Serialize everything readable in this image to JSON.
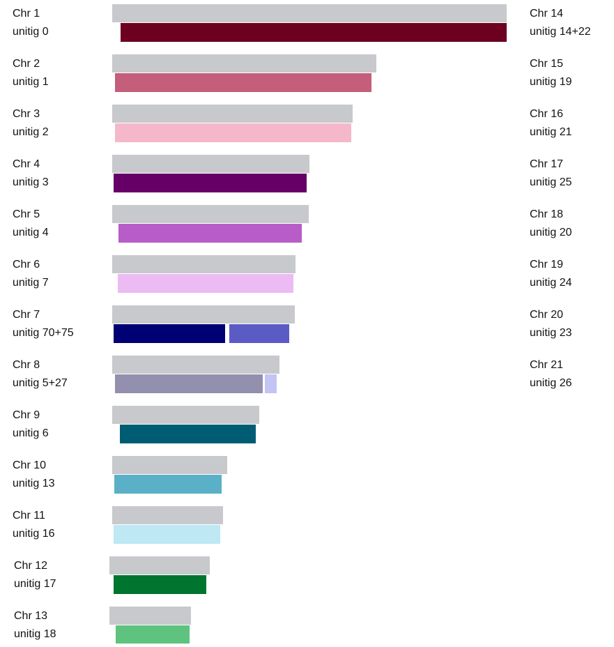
{
  "left": [
    {
      "chr": "Chr 1",
      "unitig": "unitig 0"
    },
    {
      "chr": "Chr 2",
      "unitig": "unitig 1"
    },
    {
      "chr": "Chr 3",
      "unitig": "unitig 2"
    },
    {
      "chr": "Chr 4",
      "unitig": "unitig 3"
    },
    {
      "chr": "Chr 5",
      "unitig": "unitig 4"
    },
    {
      "chr": "Chr 6",
      "unitig": "unitig 7"
    },
    {
      "chr": "Chr 7",
      "unitig": "unitig 70+75"
    },
    {
      "chr": "Chr 8",
      "unitig": "unitig 5+27"
    },
    {
      "chr": "Chr 9",
      "unitig": "unitig 6"
    },
    {
      "chr": "Chr 10",
      "unitig": "unitig 13"
    },
    {
      "chr": "Chr 11",
      "unitig": "unitig 16"
    },
    {
      "chr": "Chr 12",
      "unitig": "unitig 17"
    },
    {
      "chr": "Chr 13",
      "unitig": "unitig 18"
    }
  ],
  "right": [
    {
      "chr": "Chr 14",
      "unitig": "unitig 14+22"
    },
    {
      "chr": "Chr 15",
      "unitig": "unitig 19"
    },
    {
      "chr": "Chr 16",
      "unitig": "unitig 21"
    },
    {
      "chr": "Chr 17",
      "unitig": "unitig 25"
    },
    {
      "chr": "Chr 18",
      "unitig": "unitig 20"
    },
    {
      "chr": "Chr 19",
      "unitig": "unitig 24"
    },
    {
      "chr": "Chr 20",
      "unitig": "unitig 23"
    },
    {
      "chr": "Chr 21",
      "unitig": "unitig 26"
    }
  ]
}
